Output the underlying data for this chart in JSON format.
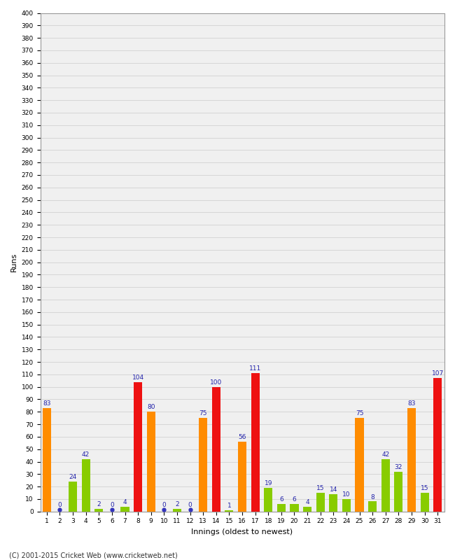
{
  "xlabel": "Innings (oldest to newest)",
  "ylabel": "Runs",
  "footer": "(C) 2001-2015 Cricket Web (www.cricketweb.net)",
  "ylim": [
    0,
    400
  ],
  "innings_data": [
    {
      "inn": 1,
      "val": 83,
      "color": "orange"
    },
    {
      "inn": 2,
      "val": 0,
      "color": "blue"
    },
    {
      "inn": 3,
      "val": 24,
      "color": "green"
    },
    {
      "inn": 4,
      "val": 42,
      "color": "green"
    },
    {
      "inn": 5,
      "val": 2,
      "color": "green"
    },
    {
      "inn": 6,
      "val": 0,
      "color": "blue"
    },
    {
      "inn": 7,
      "val": 4,
      "color": "green"
    },
    {
      "inn": 8,
      "val": 104,
      "color": "red"
    },
    {
      "inn": 9,
      "val": 80,
      "color": "orange"
    },
    {
      "inn": 10,
      "val": 0,
      "color": "blue"
    },
    {
      "inn": 11,
      "val": 2,
      "color": "green"
    },
    {
      "inn": 12,
      "val": 0,
      "color": "blue"
    },
    {
      "inn": 13,
      "val": 75,
      "color": "orange"
    },
    {
      "inn": 14,
      "val": 100,
      "color": "red"
    },
    {
      "inn": 15,
      "val": 1,
      "color": "green"
    },
    {
      "inn": 16,
      "val": 56,
      "color": "orange"
    },
    {
      "inn": 17,
      "val": 111,
      "color": "red"
    },
    {
      "inn": 18,
      "val": 19,
      "color": "green"
    },
    {
      "inn": 19,
      "val": 6,
      "color": "green"
    },
    {
      "inn": 20,
      "val": 6,
      "color": "green"
    },
    {
      "inn": 21,
      "val": 4,
      "color": "green"
    },
    {
      "inn": 22,
      "val": 15,
      "color": "green"
    },
    {
      "inn": 23,
      "val": 14,
      "color": "green"
    },
    {
      "inn": 24,
      "val": 10,
      "color": "green"
    },
    {
      "inn": 25,
      "val": 75,
      "color": "orange"
    },
    {
      "inn": 26,
      "val": 8,
      "color": "green"
    },
    {
      "inn": 27,
      "val": 42,
      "color": "green"
    },
    {
      "inn": 28,
      "val": 32,
      "color": "green"
    },
    {
      "inn": 29,
      "val": 83,
      "color": "orange"
    },
    {
      "inn": 30,
      "val": 15,
      "color": "green"
    },
    {
      "inn": 31,
      "val": 107,
      "color": "red"
    }
  ],
  "color_map": {
    "orange": "#FF8C00",
    "red": "#EE1111",
    "green": "#88CC00",
    "blue": "#3333BB"
  },
  "bar_width": 0.65,
  "label_color": "#2222AA",
  "label_fontsize": 6.5,
  "axis_bg": "#F0F0F0",
  "grid_color": "#CCCCCC",
  "tick_fontsize": 6.5,
  "ylabel_fontsize": 8,
  "xlabel_fontsize": 8,
  "figsize": [
    6.5,
    8.0
  ],
  "dpi": 100
}
